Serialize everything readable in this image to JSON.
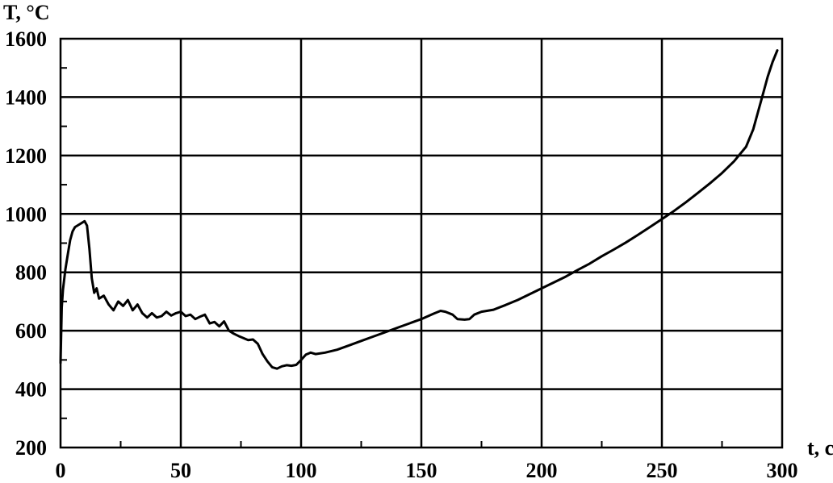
{
  "chart_data": {
    "type": "line",
    "title": "",
    "xlabel": "t, c",
    "ylabel": "T, °C",
    "xlim": [
      0,
      300
    ],
    "ylim": [
      200,
      1600
    ],
    "xticks": [
      0,
      50,
      100,
      150,
      200,
      250,
      300
    ],
    "yticks": [
      200,
      400,
      600,
      800,
      1000,
      1200,
      1400,
      1600
    ],
    "grid": true,
    "legend": "none",
    "series": [
      {
        "x": [
          0,
          0.5,
          1,
          2,
          3,
          4,
          5,
          6,
          8,
          10,
          11,
          12,
          13,
          14,
          15,
          16,
          18,
          20,
          22,
          24,
          26,
          28,
          30,
          32,
          34,
          36,
          38,
          40,
          42,
          44,
          46,
          48,
          50,
          52,
          54,
          56,
          58,
          60,
          62,
          64,
          66,
          68,
          70,
          72,
          74,
          76,
          78,
          80,
          82,
          84,
          86,
          88,
          90,
          92,
          94,
          96,
          98,
          100,
          102,
          104,
          106,
          110,
          115,
          120,
          125,
          130,
          135,
          140,
          145,
          150,
          155,
          158,
          160,
          163,
          165,
          168,
          170,
          172,
          175,
          180,
          185,
          190,
          195,
          200,
          205,
          210,
          215,
          220,
          225,
          230,
          235,
          240,
          245,
          250,
          255,
          260,
          265,
          270,
          275,
          280,
          285,
          288,
          290,
          292,
          294,
          296,
          298
        ],
        "y": [
          490,
          680,
          740,
          810,
          860,
          910,
          940,
          955,
          965,
          975,
          960,
          880,
          780,
          730,
          745,
          710,
          720,
          690,
          670,
          700,
          685,
          705,
          670,
          690,
          660,
          645,
          660,
          645,
          650,
          665,
          652,
          660,
          665,
          650,
          655,
          640,
          648,
          655,
          625,
          630,
          615,
          632,
          600,
          590,
          582,
          575,
          568,
          570,
          555,
          520,
          495,
          475,
          470,
          478,
          482,
          480,
          483,
          500,
          518,
          525,
          520,
          525,
          535,
          550,
          565,
          580,
          595,
          610,
          625,
          640,
          658,
          668,
          665,
          655,
          640,
          638,
          640,
          655,
          665,
          672,
          688,
          705,
          725,
          745,
          765,
          785,
          808,
          830,
          855,
          878,
          902,
          928,
          955,
          982,
          1010,
          1040,
          1072,
          1105,
          1140,
          1180,
          1230,
          1290,
          1350,
          1410,
          1470,
          1520,
          1560
        ]
      }
    ]
  }
}
